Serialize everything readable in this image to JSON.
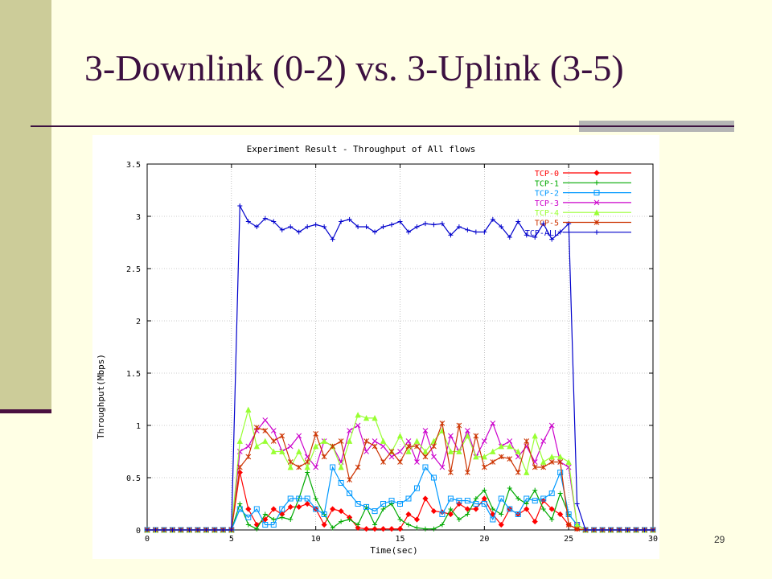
{
  "slide": {
    "title": "3-Downlink (0-2) vs. 3-Uplink (3-5)",
    "page_number": "29",
    "colors": {
      "background": "#ffffe5",
      "sidebar": "#cccc99",
      "title": "#3c1040"
    }
  },
  "chart_data": {
    "type": "line",
    "title": "Experiment Result - Throughput of All flows",
    "xlabel": "Time(sec)",
    "ylabel": "Throughput(Mbps)",
    "xlim": [
      0,
      30
    ],
    "ylim": [
      0,
      3.5
    ],
    "xticks": [
      0,
      5,
      10,
      15,
      20,
      25,
      30
    ],
    "yticks": [
      0,
      0.5,
      1,
      1.5,
      2,
      2.5,
      3,
      3.5
    ],
    "ytick_labels": [
      "0",
      "0.5",
      "1",
      "1.5",
      "2",
      "2.5",
      "3",
      "3.5"
    ],
    "grid": true,
    "legend_position": "top-right",
    "series": [
      {
        "name": "TCP-0",
        "color": "#ff0000",
        "marker": "diamond",
        "x": [
          0,
          0.5,
          1,
          1.5,
          2,
          2.5,
          3,
          3.5,
          4,
          4.5,
          5,
          5.5,
          6,
          6.5,
          7,
          7.5,
          8,
          8.5,
          9,
          9.5,
          10,
          10.5,
          11,
          11.5,
          12,
          12.5,
          13,
          13.5,
          14,
          14.5,
          15,
          15.5,
          16,
          16.5,
          17,
          17.5,
          18,
          18.5,
          19,
          19.5,
          20,
          20.5,
          21,
          21.5,
          22,
          22.5,
          23,
          23.5,
          24,
          24.5,
          25,
          25.5,
          26,
          26.5,
          27,
          27.5,
          28,
          28.5,
          29,
          29.5,
          30
        ],
        "y": [
          0,
          0,
          0,
          0,
          0,
          0,
          0,
          0,
          0,
          0,
          0,
          0.55,
          0.2,
          0.05,
          0.1,
          0.2,
          0.15,
          0.22,
          0.22,
          0.25,
          0.2,
          0.05,
          0.2,
          0.18,
          0.12,
          0.02,
          0.01,
          0.01,
          0.01,
          0.01,
          0.01,
          0.15,
          0.1,
          0.3,
          0.18,
          0.17,
          0.15,
          0.25,
          0.2,
          0.2,
          0.3,
          0.15,
          0.05,
          0.2,
          0.15,
          0.2,
          0.08,
          0.28,
          0.2,
          0.15,
          0.05,
          0.01,
          0,
          0,
          0,
          0,
          0,
          0,
          0,
          0,
          0
        ]
      },
      {
        "name": "TCP-1",
        "color": "#00aa00",
        "marker": "plus",
        "x": [
          0,
          0.5,
          1,
          1.5,
          2,
          2.5,
          3,
          3.5,
          4,
          4.5,
          5,
          5.5,
          6,
          6.5,
          7,
          7.5,
          8,
          8.5,
          9,
          9.5,
          10,
          10.5,
          11,
          11.5,
          12,
          12.5,
          13,
          13.5,
          14,
          14.5,
          15,
          15.5,
          16,
          16.5,
          17,
          17.5,
          18,
          18.5,
          19,
          19.5,
          20,
          20.5,
          21,
          21.5,
          22,
          22.5,
          23,
          23.5,
          24,
          24.5,
          25,
          25.5,
          26,
          26.5,
          27,
          27.5,
          28,
          28.5,
          29,
          29.5,
          30
        ],
        "y": [
          0,
          0,
          0,
          0,
          0,
          0,
          0,
          0,
          0,
          0,
          0,
          0.25,
          0.05,
          0.01,
          0.15,
          0.1,
          0.12,
          0.1,
          0.3,
          0.55,
          0.3,
          0.15,
          0.02,
          0.08,
          0.1,
          0.05,
          0.22,
          0.05,
          0.2,
          0.25,
          0.1,
          0.05,
          0.02,
          0.01,
          0.01,
          0.05,
          0.2,
          0.1,
          0.15,
          0.3,
          0.38,
          0.2,
          0.15,
          0.4,
          0.3,
          0.25,
          0.38,
          0.2,
          0.1,
          0.35,
          0.15,
          0.05,
          0,
          0,
          0,
          0,
          0,
          0,
          0,
          0,
          0
        ]
      },
      {
        "name": "TCP-2",
        "color": "#0099ff",
        "marker": "square",
        "x": [
          0,
          0.5,
          1,
          1.5,
          2,
          2.5,
          3,
          3.5,
          4,
          4.5,
          5,
          5.5,
          6,
          6.5,
          7,
          7.5,
          8,
          8.5,
          9,
          9.5,
          10,
          10.5,
          11,
          11.5,
          12,
          12.5,
          13,
          13.5,
          14,
          14.5,
          15,
          15.5,
          16,
          16.5,
          17,
          17.5,
          18,
          18.5,
          19,
          19.5,
          20,
          20.5,
          21,
          21.5,
          22,
          22.5,
          23,
          23.5,
          24,
          24.5,
          25,
          25.5,
          26,
          26.5,
          27,
          27.5,
          28,
          28.5,
          29,
          29.5,
          30
        ],
        "y": [
          0,
          0,
          0,
          0,
          0,
          0,
          0,
          0,
          0,
          0,
          0,
          0.2,
          0.12,
          0.2,
          0.05,
          0.05,
          0.2,
          0.3,
          0.3,
          0.3,
          0.2,
          0.15,
          0.6,
          0.45,
          0.35,
          0.25,
          0.22,
          0.18,
          0.25,
          0.28,
          0.25,
          0.3,
          0.4,
          0.6,
          0.5,
          0.15,
          0.3,
          0.28,
          0.28,
          0.25,
          0.25,
          0.1,
          0.3,
          0.2,
          0.15,
          0.3,
          0.28,
          0.3,
          0.35,
          0.55,
          0.15,
          0.05,
          0,
          0,
          0,
          0,
          0,
          0,
          0,
          0,
          0
        ]
      },
      {
        "name": "TCP-3",
        "color": "#cc00cc",
        "marker": "cross",
        "x": [
          0,
          0.5,
          1,
          1.5,
          2,
          2.5,
          3,
          3.5,
          4,
          4.5,
          5,
          5.5,
          6,
          6.5,
          7,
          7.5,
          8,
          8.5,
          9,
          9.5,
          10,
          10.5,
          11,
          11.5,
          12,
          12.5,
          13,
          13.5,
          14,
          14.5,
          15,
          15.5,
          16,
          16.5,
          17,
          17.5,
          18,
          18.5,
          19,
          19.5,
          20,
          20.5,
          21,
          21.5,
          22,
          22.5,
          23,
          23.5,
          24,
          24.5,
          25,
          25.5,
          26,
          26.5,
          27,
          27.5,
          28,
          28.5,
          29,
          29.5,
          30
        ],
        "y": [
          0,
          0,
          0,
          0,
          0,
          0,
          0,
          0,
          0,
          0,
          0,
          0.75,
          0.8,
          0.95,
          1.05,
          0.95,
          0.75,
          0.8,
          0.9,
          0.7,
          0.6,
          0.85,
          0.8,
          0.65,
          0.95,
          1.0,
          0.75,
          0.85,
          0.8,
          0.7,
          0.75,
          0.85,
          0.65,
          0.95,
          0.7,
          0.6,
          0.9,
          0.75,
          0.95,
          0.7,
          0.85,
          1.02,
          0.8,
          0.85,
          0.7,
          0.8,
          0.65,
          0.85,
          1.0,
          0.65,
          0.6,
          0.05,
          0,
          0,
          0,
          0,
          0,
          0,
          0,
          0,
          0
        ]
      },
      {
        "name": "TCP-4",
        "color": "#99ff33",
        "marker": "triangle",
        "x": [
          0,
          0.5,
          1,
          1.5,
          2,
          2.5,
          3,
          3.5,
          4,
          4.5,
          5,
          5.5,
          6,
          6.5,
          7,
          7.5,
          8,
          8.5,
          9,
          9.5,
          10,
          10.5,
          11,
          11.5,
          12,
          12.5,
          13,
          13.5,
          14,
          14.5,
          15,
          15.5,
          16,
          16.5,
          17,
          17.5,
          18,
          18.5,
          19,
          19.5,
          20,
          20.5,
          21,
          21.5,
          22,
          22.5,
          23,
          23.5,
          24,
          24.5,
          25,
          25.5,
          26,
          26.5,
          27,
          27.5,
          28,
          28.5,
          29,
          29.5,
          30
        ],
        "y": [
          0,
          0,
          0,
          0,
          0,
          0,
          0,
          0,
          0,
          0,
          0,
          0.85,
          1.15,
          0.8,
          0.85,
          0.75,
          0.75,
          0.6,
          0.75,
          0.6,
          0.8,
          0.85,
          0.8,
          0.6,
          0.85,
          1.1,
          1.07,
          1.07,
          0.85,
          0.75,
          0.9,
          0.75,
          0.85,
          0.75,
          0.85,
          0.95,
          0.75,
          0.75,
          0.9,
          0.7,
          0.7,
          0.75,
          0.8,
          0.8,
          0.75,
          0.55,
          0.9,
          0.65,
          0.7,
          0.7,
          0.65,
          0.05,
          0,
          0,
          0,
          0,
          0,
          0,
          0,
          0,
          0
        ]
      },
      {
        "name": "TCP-5",
        "color": "#cc3300",
        "marker": "star",
        "x": [
          0,
          0.5,
          1,
          1.5,
          2,
          2.5,
          3,
          3.5,
          4,
          4.5,
          5,
          5.5,
          6,
          6.5,
          7,
          7.5,
          8,
          8.5,
          9,
          9.5,
          10,
          10.5,
          11,
          11.5,
          12,
          12.5,
          13,
          13.5,
          14,
          14.5,
          15,
          15.5,
          16,
          16.5,
          17,
          17.5,
          18,
          18.5,
          19,
          19.5,
          20,
          20.5,
          21,
          21.5,
          22,
          22.5,
          23,
          23.5,
          24,
          24.5,
          25,
          25.5,
          26,
          26.5,
          27,
          27.5,
          28,
          28.5,
          29,
          29.5,
          30
        ],
        "y": [
          0,
          0,
          0,
          0,
          0,
          0,
          0,
          0,
          0,
          0,
          0,
          0.6,
          0.7,
          0.98,
          0.95,
          0.85,
          0.9,
          0.65,
          0.6,
          0.65,
          0.92,
          0.7,
          0.8,
          0.85,
          0.48,
          0.6,
          0.85,
          0.8,
          0.65,
          0.75,
          0.65,
          0.8,
          0.8,
          0.7,
          0.8,
          1.02,
          0.55,
          1.0,
          0.55,
          0.9,
          0.6,
          0.65,
          0.7,
          0.68,
          0.55,
          0.85,
          0.6,
          0.6,
          0.65,
          0.65,
          0.05,
          0.01,
          0,
          0,
          0,
          0,
          0,
          0,
          0,
          0,
          0
        ]
      },
      {
        "name": "TCP-ALL",
        "color": "#0000cc",
        "marker": "plus",
        "x": [
          0,
          0.5,
          1,
          1.5,
          2,
          2.5,
          3,
          3.5,
          4,
          4.5,
          5,
          5.5,
          6,
          6.5,
          7,
          7.5,
          8,
          8.5,
          9,
          9.5,
          10,
          10.5,
          11,
          11.5,
          12,
          12.5,
          13,
          13.5,
          14,
          14.5,
          15,
          15.5,
          16,
          16.5,
          17,
          17.5,
          18,
          18.5,
          19,
          19.5,
          20,
          20.5,
          21,
          21.5,
          22,
          22.5,
          23,
          23.5,
          24,
          24.5,
          25,
          25.5,
          26,
          26.5,
          27,
          27.5,
          28,
          28.5,
          29,
          29.5,
          30
        ],
        "y": [
          0,
          0,
          0,
          0,
          0,
          0,
          0,
          0,
          0,
          0,
          0,
          3.1,
          2.95,
          2.9,
          2.98,
          2.95,
          2.87,
          2.9,
          2.85,
          2.9,
          2.92,
          2.9,
          2.78,
          2.95,
          2.97,
          2.9,
          2.9,
          2.85,
          2.9,
          2.92,
          2.95,
          2.85,
          2.9,
          2.93,
          2.92,
          2.93,
          2.82,
          2.9,
          2.87,
          2.85,
          2.85,
          2.97,
          2.9,
          2.8,
          2.95,
          2.82,
          2.8,
          2.93,
          2.78,
          2.85,
          2.93,
          0.25,
          0,
          0,
          0,
          0,
          0,
          0,
          0,
          0,
          0
        ]
      }
    ]
  }
}
